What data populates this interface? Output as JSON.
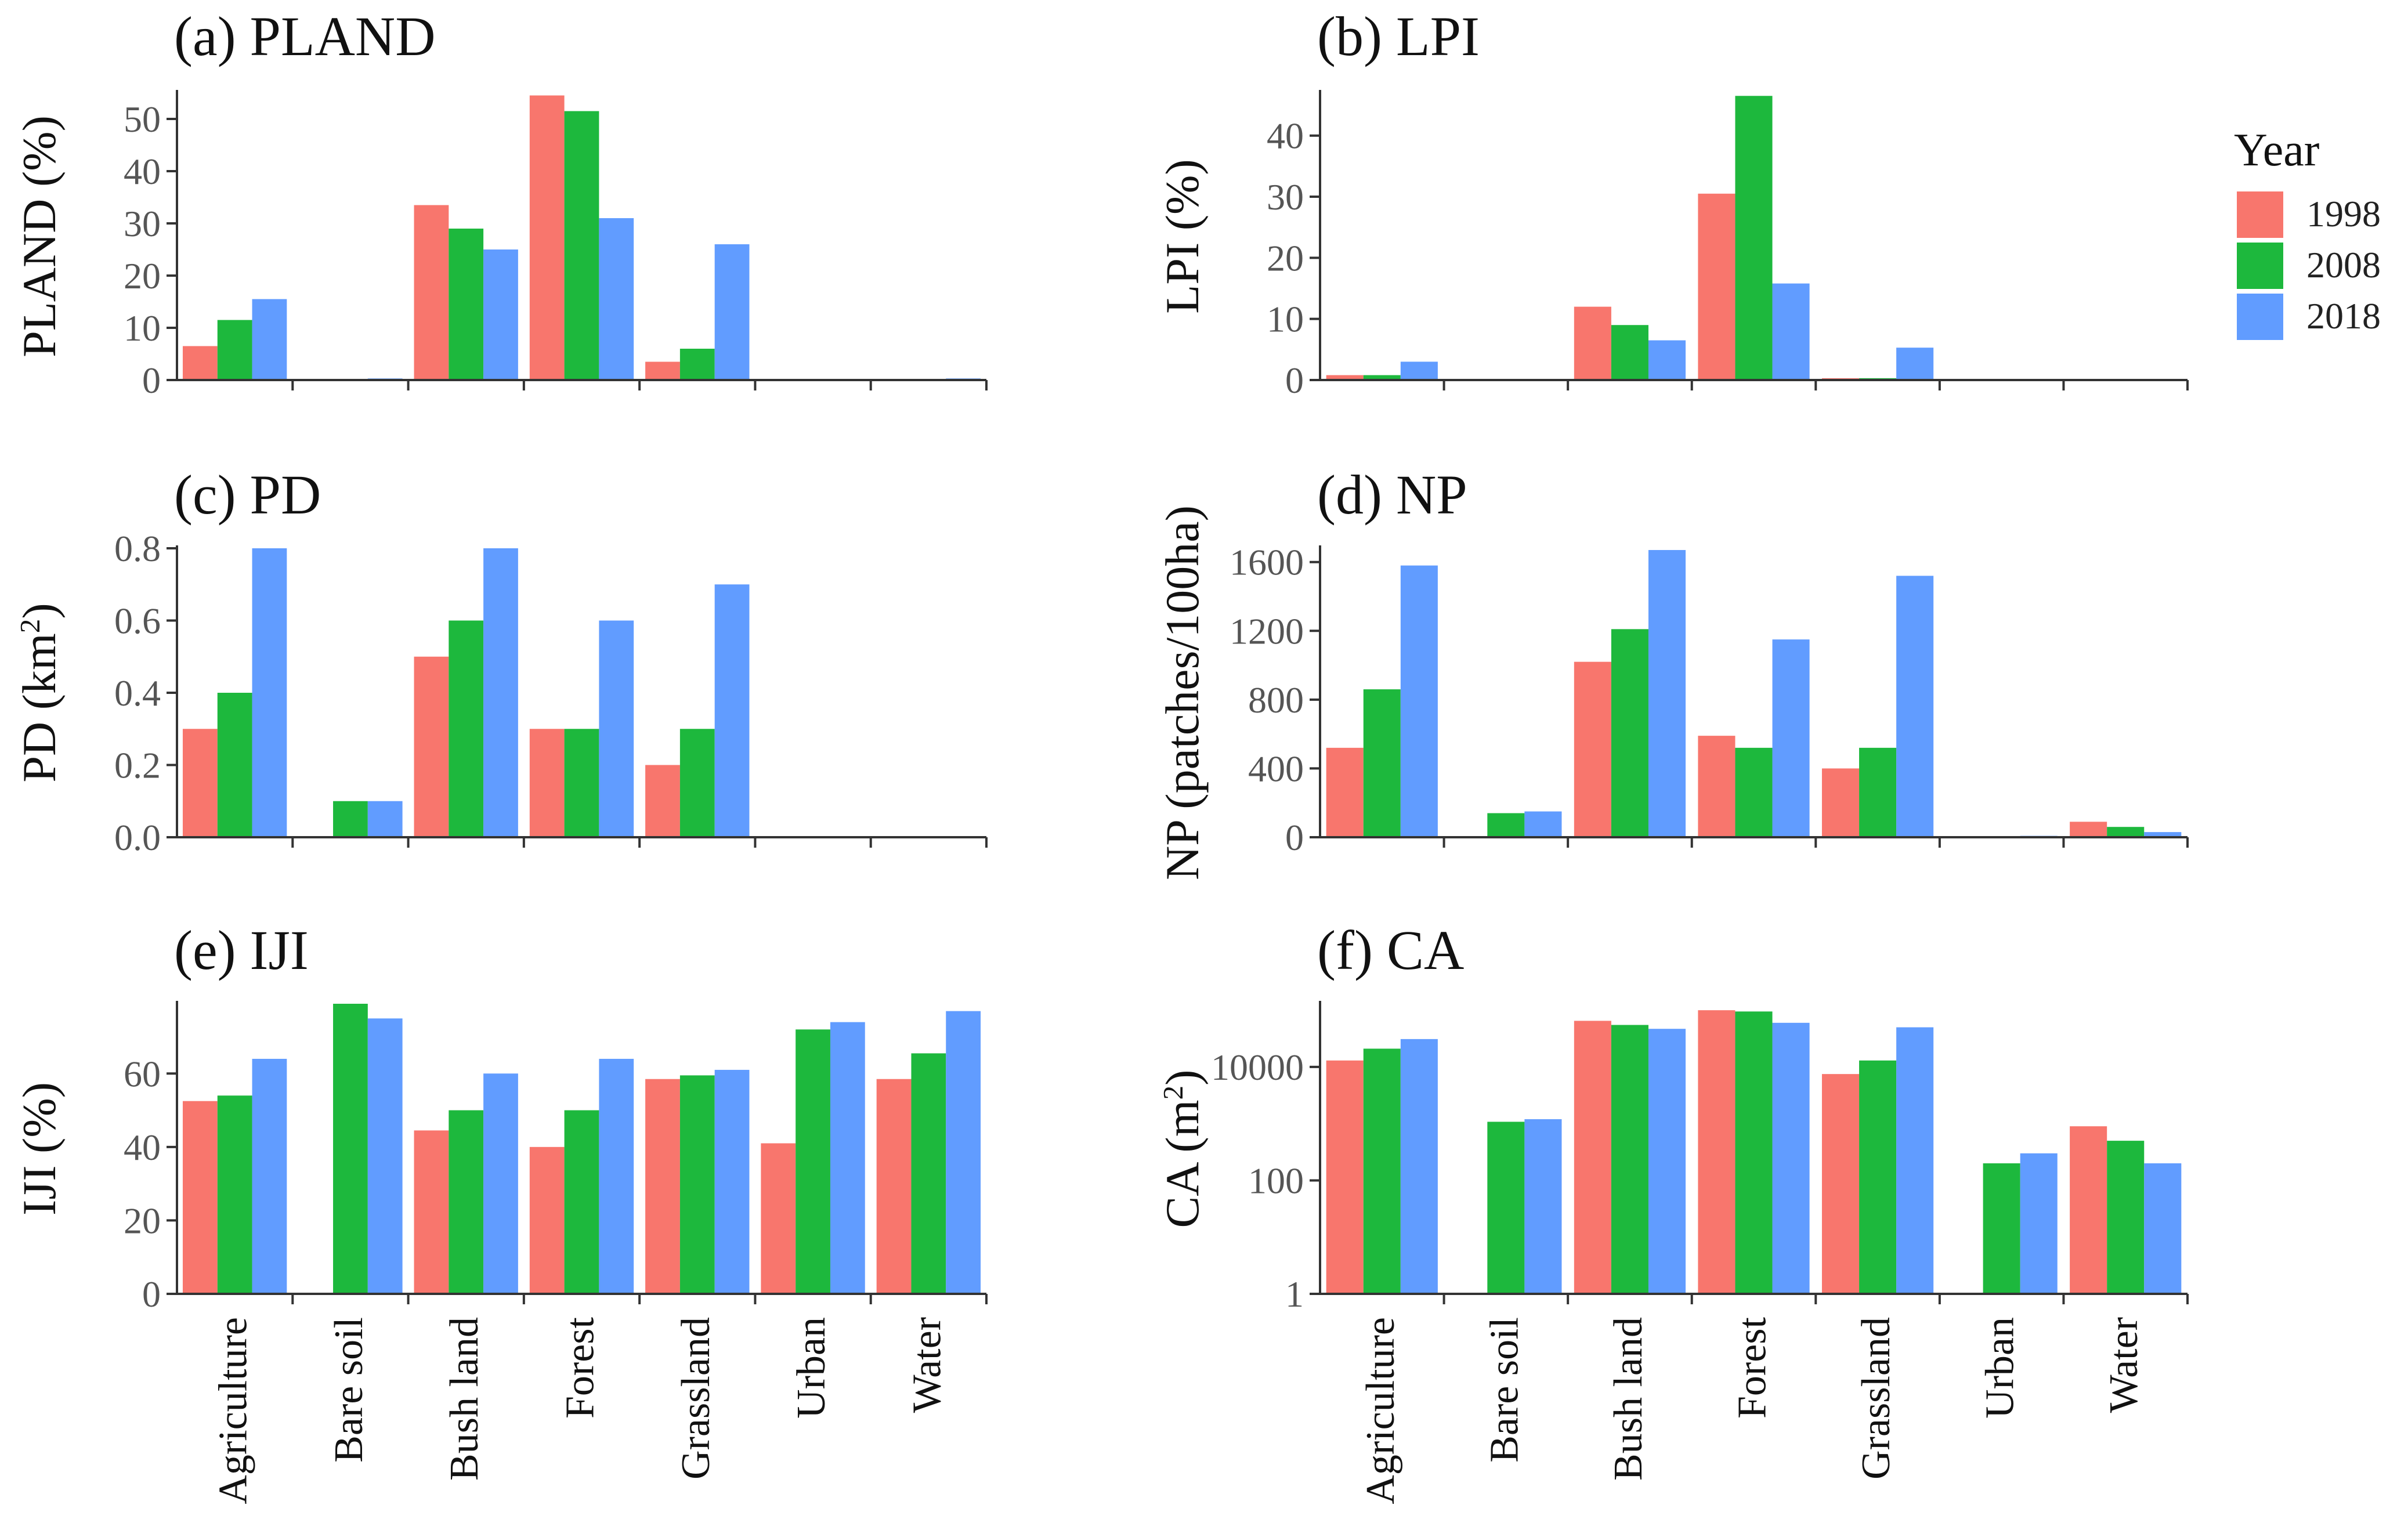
{
  "chart_data": {
    "type": "bar",
    "categories": [
      "Agriculture",
      "Bare soil",
      "Bush land",
      "Forest",
      "Grassland",
      "Urban",
      "Water"
    ],
    "legend": {
      "title": "Year",
      "entries": [
        {
          "name": "1998",
          "color": "#F8766D"
        },
        {
          "name": "2008",
          "color": "#1DB83D"
        },
        {
          "name": "2018",
          "color": "#619CFF"
        }
      ]
    },
    "panels": [
      {
        "key": "a",
        "title": "(a) PLAND",
        "ylabel": "PLAND (%)",
        "scale": "linear",
        "ylim": [
          0,
          55
        ],
        "ticks": [
          0,
          10,
          20,
          30,
          40,
          50
        ],
        "tick_labels": [
          "0",
          "10",
          "20",
          "30",
          "40",
          "50"
        ],
        "show_categories": false,
        "series": [
          {
            "name": "1998",
            "values": [
              6.5,
              0,
              33.5,
              54.5,
              3.5,
              0,
              0
            ]
          },
          {
            "name": "2008",
            "values": [
              11.5,
              0.2,
              29,
              51.5,
              6,
              0.1,
              0.2
            ]
          },
          {
            "name": "2018",
            "values": [
              15.5,
              0.3,
              25,
              31,
              26,
              0.2,
              0.3
            ]
          }
        ]
      },
      {
        "key": "b",
        "title": "(b) LPI",
        "ylabel": "LPI (%)",
        "scale": "linear",
        "ylim": [
          0,
          47
        ],
        "ticks": [
          0,
          10,
          20,
          30,
          40
        ],
        "tick_labels": [
          "0",
          "10",
          "20",
          "30",
          "40"
        ],
        "show_categories": false,
        "series": [
          {
            "name": "1998",
            "values": [
              0.8,
              0,
              12,
              30.5,
              0.3,
              0,
              0
            ]
          },
          {
            "name": "2008",
            "values": [
              0.8,
              0,
              9,
              46.5,
              0.3,
              0,
              0
            ]
          },
          {
            "name": "2018",
            "values": [
              3,
              0,
              6.5,
              15.8,
              5.3,
              0,
              0
            ]
          }
        ]
      },
      {
        "key": "c",
        "title": "(c) PD",
        "ylabel": "PD (km²)",
        "scale": "linear",
        "ylim": [
          0,
          0.8
        ],
        "ticks": [
          0,
          0.2,
          0.4,
          0.6,
          0.8
        ],
        "tick_labels": [
          "0.0",
          "0.2",
          "0.4",
          "0.6",
          "0.8"
        ],
        "show_categories": false,
        "series": [
          {
            "name": "1998",
            "values": [
              0.3,
              0,
              0.5,
              0.3,
              0.2,
              0,
              0
            ]
          },
          {
            "name": "2008",
            "values": [
              0.4,
              0.1,
              0.6,
              0.3,
              0.3,
              0,
              0
            ]
          },
          {
            "name": "2018",
            "values": [
              0.8,
              0.1,
              0.8,
              0.6,
              0.7,
              0,
              0
            ]
          }
        ]
      },
      {
        "key": "d",
        "title": "(d) NP",
        "ylabel": "NP (patches/100ha)",
        "scale": "linear",
        "ylim": [
          0,
          1680
        ],
        "ticks": [
          0,
          400,
          800,
          1200,
          1600
        ],
        "tick_labels": [
          "0",
          "400",
          "800",
          "1200",
          "1600"
        ],
        "show_categories": false,
        "series": [
          {
            "name": "1998",
            "values": [
              520,
              0,
              1020,
              590,
              400,
              0,
              90
            ]
          },
          {
            "name": "2008",
            "values": [
              860,
              140,
              1210,
              520,
              520,
              5,
              60
            ]
          },
          {
            "name": "2018",
            "values": [
              1580,
              150,
              1670,
              1150,
              1520,
              8,
              30
            ]
          }
        ]
      },
      {
        "key": "e",
        "title": "(e) IJI",
        "ylabel": "IJI (%)",
        "scale": "linear",
        "ylim": [
          0,
          79
        ],
        "ticks": [
          0,
          20,
          40,
          60
        ],
        "tick_labels": [
          "0",
          "20",
          "40",
          "60"
        ],
        "show_categories": true,
        "series": [
          {
            "name": "1998",
            "values": [
              52.5,
              0,
              44.5,
              40,
              58.5,
              41,
              58.5
            ]
          },
          {
            "name": "2008",
            "values": [
              54,
              79,
              50,
              50,
              59.5,
              72,
              65.5
            ]
          },
          {
            "name": "2018",
            "values": [
              64,
              75,
              60,
              64,
              61,
              74,
              77
            ]
          }
        ]
      },
      {
        "key": "f",
        "title": "(f) CA",
        "ylabel": "CA (m²)",
        "scale": "log",
        "ylim": [
          1,
          130000
        ],
        "ticks": [
          1,
          100,
          10000
        ],
        "tick_labels": [
          "1",
          "100",
          "10000"
        ],
        "show_categories": true,
        "series": [
          {
            "name": "1998",
            "values": [
              13000,
              0,
              65000,
              100000,
              7500,
              0,
              900
            ]
          },
          {
            "name": "2008",
            "values": [
              21000,
              1080,
              55000,
              95000,
              13000,
              200,
              500
            ]
          },
          {
            "name": "2018",
            "values": [
              31000,
              1200,
              47000,
              60000,
              50000,
              300,
              200
            ]
          }
        ]
      }
    ]
  }
}
